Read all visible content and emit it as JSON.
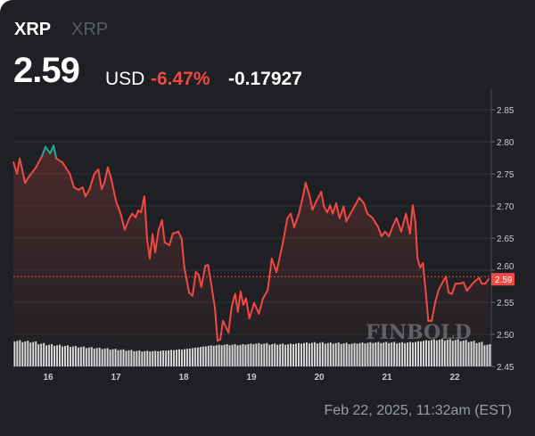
{
  "header": {
    "symbol": "XRP",
    "name": "XRP",
    "price": "2.59",
    "currency": "USD",
    "change_pct": "-6.47%",
    "change_abs": "-0.17927"
  },
  "footer": {
    "timestamp": "Feb 22, 2025, 11:32am (EST)"
  },
  "watermark": "FINBOLD",
  "colors": {
    "down": "#ef4a44",
    "up": "#26a69a",
    "background": "#1e2024",
    "volume": "#d9dadc"
  },
  "chart_data": {
    "type": "line",
    "title": "",
    "xlabel": "",
    "ylabel": "",
    "ylim": [
      2.45,
      2.87
    ],
    "yticks": [
      "2.85",
      "2.80",
      "2.75",
      "2.70",
      "2.65",
      "2.60",
      "2.55",
      "2.50",
      "2.45"
    ],
    "xticks": [
      "16",
      "17",
      "18",
      "19",
      "20",
      "21",
      "22"
    ],
    "grid": true,
    "last_price_label": "2.59",
    "last_price": 2.59,
    "series": [
      {
        "x": [
          15.49,
          15.54,
          15.58,
          15.66,
          15.72,
          15.82,
          15.91,
          15.96,
          16.03,
          16.08,
          16.12,
          16.21,
          16.32,
          16.38,
          16.45,
          16.51,
          16.55,
          16.61,
          16.68,
          16.74,
          16.79,
          16.83,
          16.88,
          16.93,
          17.0,
          17.07,
          17.13,
          17.2,
          17.24,
          17.29,
          17.33,
          17.37,
          17.42,
          17.46,
          17.5,
          17.54,
          17.58,
          17.63,
          17.68,
          17.72,
          17.79,
          17.84,
          17.92,
          17.97,
          18.01,
          18.08,
          18.13,
          18.18,
          18.22,
          18.26,
          18.32,
          18.36,
          18.41,
          18.46,
          18.5,
          18.54,
          18.58,
          18.66,
          18.71,
          18.76,
          18.8,
          18.84,
          18.88,
          18.92,
          18.97,
          19.04,
          19.11,
          19.17,
          19.24,
          19.3,
          19.37,
          19.47,
          19.53,
          19.58,
          19.63,
          19.7,
          19.76,
          19.8,
          19.86,
          19.9,
          19.96,
          20.03,
          20.07,
          20.12,
          20.16,
          20.2,
          20.25,
          20.3,
          20.36,
          20.4,
          20.46,
          20.53,
          20.59,
          20.66,
          20.71,
          20.79,
          20.87,
          20.92,
          20.97,
          21.03,
          21.08,
          21.14,
          21.21,
          21.28,
          21.34,
          21.38,
          21.42,
          21.45,
          21.49,
          21.53,
          21.57,
          21.61,
          21.66,
          21.71,
          21.76,
          21.83,
          21.87,
          21.91,
          21.96,
          22.01,
          22.07,
          22.13,
          22.18,
          22.24,
          22.29,
          22.36,
          22.4,
          22.45,
          22.5
        ],
        "y": [
          2.768,
          2.75,
          2.774,
          2.736,
          2.746,
          2.76,
          2.778,
          2.792,
          2.782,
          2.794,
          2.774,
          2.768,
          2.75,
          2.729,
          2.725,
          2.729,
          2.715,
          2.726,
          2.75,
          2.757,
          2.726,
          2.736,
          2.76,
          2.743,
          2.708,
          2.688,
          2.663,
          2.681,
          2.688,
          2.682,
          2.693,
          2.69,
          2.715,
          2.649,
          2.618,
          2.656,
          2.628,
          2.663,
          2.678,
          2.643,
          2.639,
          2.657,
          2.66,
          2.649,
          2.604,
          2.565,
          2.56,
          2.597,
          2.593,
          2.574,
          2.607,
          2.608,
          2.576,
          2.542,
          2.49,
          2.492,
          2.521,
          2.503,
          2.544,
          2.563,
          2.535,
          2.567,
          2.546,
          2.556,
          2.525,
          2.549,
          2.532,
          2.556,
          2.569,
          2.618,
          2.597,
          2.646,
          2.681,
          2.688,
          2.667,
          2.688,
          2.715,
          2.736,
          2.715,
          2.694,
          2.708,
          2.722,
          2.699,
          2.69,
          2.701,
          2.688,
          2.704,
          2.681,
          2.699,
          2.676,
          2.688,
          2.701,
          2.713,
          2.704,
          2.688,
          2.681,
          2.667,
          2.653,
          2.66,
          2.653,
          2.667,
          2.681,
          2.66,
          2.688,
          2.657,
          2.701,
          2.674,
          2.618,
          2.604,
          2.611,
          2.569,
          2.521,
          2.521,
          2.549,
          2.569,
          2.583,
          2.59,
          2.565,
          2.563,
          2.579,
          2.579,
          2.581,
          2.568,
          2.576,
          2.582,
          2.588,
          2.579,
          2.579,
          2.586
        ]
      }
    ],
    "volume": [
      0.92,
      0.9,
      0.88,
      0.82,
      0.78,
      0.76,
      0.74,
      0.72,
      0.7,
      0.68,
      0.66,
      0.64,
      0.62,
      0.6,
      0.58,
      0.56,
      0.55,
      0.55,
      0.56,
      0.58,
      0.6,
      0.62,
      0.66,
      0.7,
      0.74,
      0.76,
      0.78,
      0.78,
      0.78,
      0.8,
      0.82,
      0.82,
      0.8,
      0.8,
      0.8,
      0.82,
      0.84,
      0.85,
      0.85,
      0.84,
      0.84,
      0.83,
      0.82,
      0.84,
      0.85,
      0.86,
      0.86,
      0.86,
      0.85,
      0.86,
      0.88,
      0.92,
      0.95,
      0.96,
      0.96,
      0.95,
      0.93,
      0.9,
      0.86,
      0.78
    ]
  }
}
